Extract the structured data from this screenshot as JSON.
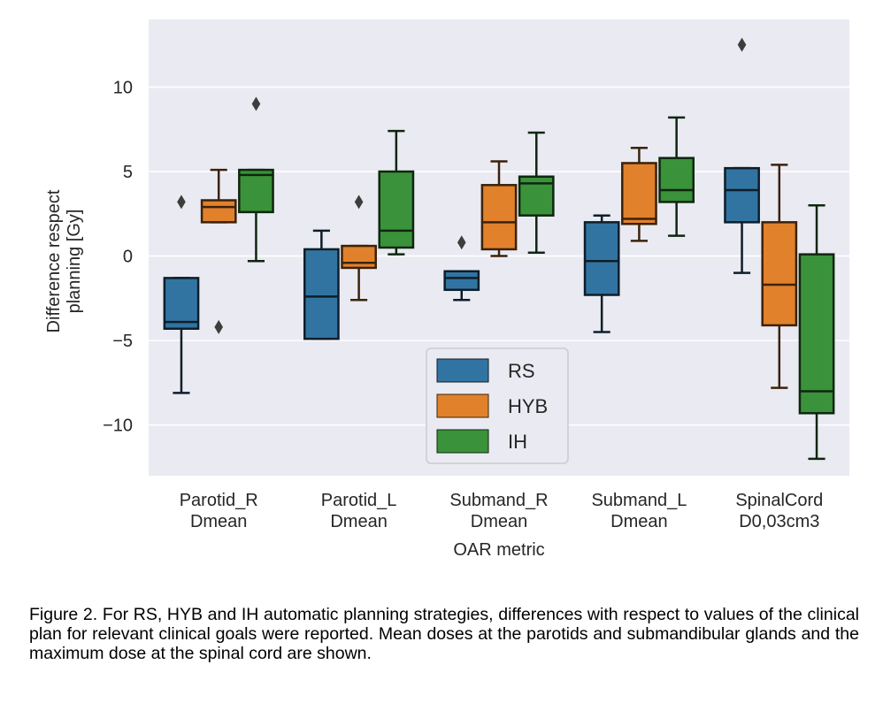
{
  "chart_data": {
    "type": "boxplot",
    "xlabel": "OAR metric",
    "ylabel": [
      "Difference respect",
      "planning [Gy]"
    ],
    "ylim": [
      -13,
      14
    ],
    "yticks": [
      10,
      5,
      0,
      -5,
      -10
    ],
    "ytick_labels": [
      "10",
      "5",
      "0",
      "−5",
      "−10"
    ],
    "grid": true,
    "background": "#eaeaf2",
    "legend_position": "lower center",
    "categories": [
      [
        "Parotid_R",
        "Dmean"
      ],
      [
        "Parotid_L",
        "Dmean"
      ],
      [
        "Submand_R",
        "Dmean"
      ],
      [
        "Submand_L",
        "Dmean"
      ],
      [
        "SpinalCord",
        "D0,03cm3"
      ]
    ],
    "series": [
      {
        "name": "RS",
        "color": "#3274a1",
        "boxes": [
          {
            "whislo": -8.1,
            "q1": -4.3,
            "med": -3.9,
            "q3": -1.3,
            "whishi": -1.3,
            "fliers": [
              3.2
            ]
          },
          {
            "whislo": -4.9,
            "q1": -4.9,
            "med": -2.4,
            "q3": 0.4,
            "whishi": 1.5,
            "fliers": []
          },
          {
            "whislo": -2.6,
            "q1": -2.0,
            "med": -1.3,
            "q3": -0.9,
            "whishi": -0.9,
            "fliers": [
              0.8
            ]
          },
          {
            "whislo": -4.5,
            "q1": -2.3,
            "med": -0.3,
            "q3": 2.0,
            "whishi": 2.4,
            "fliers": []
          },
          {
            "whislo": -1.0,
            "q1": 2.0,
            "med": 3.9,
            "q3": 5.2,
            "whishi": 5.2,
            "fliers": [
              12.5
            ]
          }
        ]
      },
      {
        "name": "HYB",
        "color": "#e1812c",
        "boxes": [
          {
            "whislo": 2.0,
            "q1": 2.0,
            "med": 2.9,
            "q3": 3.3,
            "whishi": 5.1,
            "fliers": [
              -4.2
            ]
          },
          {
            "whislo": -2.6,
            "q1": -0.7,
            "med": -0.4,
            "q3": 0.6,
            "whishi": 0.6,
            "fliers": [
              3.2
            ]
          },
          {
            "whislo": 0.0,
            "q1": 0.4,
            "med": 2.0,
            "q3": 4.2,
            "whishi": 5.6,
            "fliers": []
          },
          {
            "whislo": 0.9,
            "q1": 1.9,
            "med": 2.2,
            "q3": 5.5,
            "whishi": 6.4,
            "fliers": []
          },
          {
            "whislo": -7.8,
            "q1": -4.1,
            "med": -1.7,
            "q3": 2.0,
            "whishi": 5.4,
            "fliers": []
          }
        ]
      },
      {
        "name": "IH",
        "color": "#3a923a",
        "boxes": [
          {
            "whislo": -0.3,
            "q1": 2.6,
            "med": 4.8,
            "q3": 5.1,
            "whishi": 5.1,
            "fliers": [
              9.0
            ]
          },
          {
            "whislo": 0.1,
            "q1": 0.5,
            "med": 1.5,
            "q3": 5.0,
            "whishi": 7.4,
            "fliers": []
          },
          {
            "whislo": 0.2,
            "q1": 2.4,
            "med": 4.3,
            "q3": 4.7,
            "whishi": 7.3,
            "fliers": []
          },
          {
            "whislo": 1.2,
            "q1": 3.2,
            "med": 3.9,
            "q3": 5.8,
            "whishi": 8.2,
            "fliers": []
          },
          {
            "whislo": -12.0,
            "q1": -9.3,
            "med": -8.0,
            "q3": 0.1,
            "whishi": 3.0,
            "fliers": []
          }
        ]
      }
    ]
  },
  "caption": "Figure 2. For RS, HYB and IH automatic planning strategies, differences with respect to values of the clinical plan for relevant clinical goals were reported. Mean doses at the parotids and submandibular glands and the maximum dose at the spinal cord are shown."
}
